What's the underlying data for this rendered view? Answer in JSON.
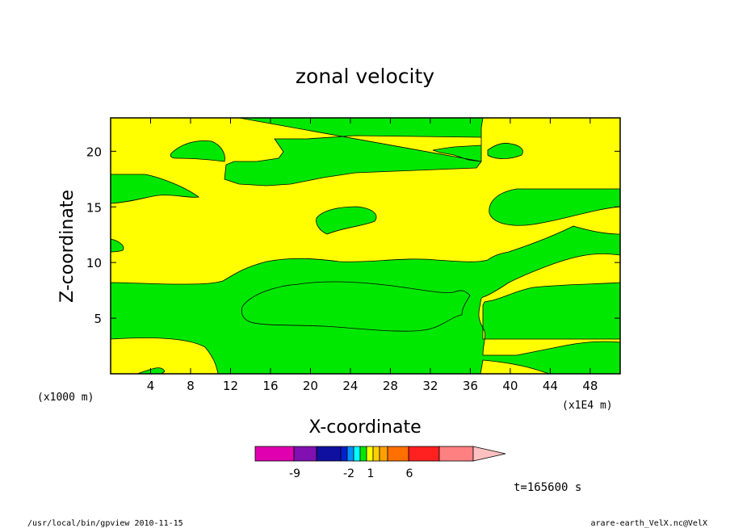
{
  "chart_data": {
    "type": "contour",
    "title": "zonal velocity",
    "xlabel": "X-coordinate",
    "ylabel": "Z-coordinate",
    "x_scale_note": "(x1E4 m)",
    "y_scale_note": "(x1000 m)",
    "xlim": [
      0,
      51
    ],
    "ylim": [
      0,
      23
    ],
    "x_ticks": [
      "4",
      "8",
      "12",
      "16",
      "20",
      "24",
      "28",
      "32",
      "36",
      "40",
      "44",
      "48"
    ],
    "y_ticks": [
      "5",
      "10",
      "15",
      "20"
    ],
    "fill_colors": {
      "background": "#ffff00",
      "regions": "#00e800"
    },
    "colorbar": {
      "colors": [
        "#e000b0",
        "#8010b0",
        "#1010a0",
        "#0020d0",
        "#0090ff",
        "#00ffff",
        "#00e800",
        "#ffff00",
        "#ffd000",
        "#ffa000",
        "#ff7000",
        "#ff2020",
        "#ff8080",
        "#ffc0c0"
      ],
      "labels": [
        "-9",
        "-2",
        "1",
        "6"
      ]
    },
    "time_label": "t=165600 s"
  },
  "footer": {
    "left": "/usr/local/bin/gpview   2010-11-15",
    "right": "arare-earth_VelX.nc@VelX"
  }
}
